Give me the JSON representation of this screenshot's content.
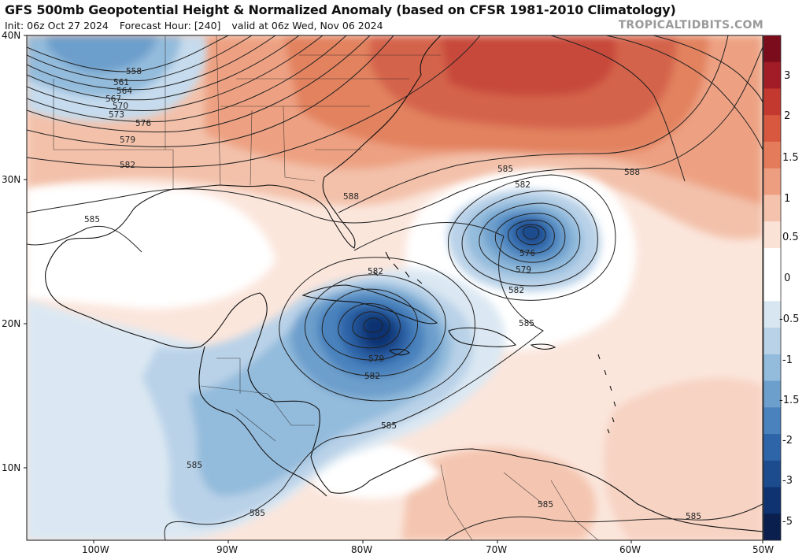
{
  "header": {
    "title": "GFS 500mb Geopotential Height & Normalized Anomaly (based on CFSR 1981-2010 Climatology)",
    "init": "Init: 06z Oct 27 2024",
    "forecast_hour": "Forecast Hour: [240]",
    "valid": "valid at 06z Wed, Nov 06 2024",
    "brand": "TROPICALTIDBITS.COM"
  },
  "axes": {
    "lat_labels": [
      "40N",
      "30N",
      "20N",
      "10N"
    ],
    "lon_labels": [
      "100W",
      "90W",
      "80W",
      "70W",
      "60W",
      "50W"
    ]
  },
  "colorbar": {
    "labels": [
      "3",
      "2",
      "1.5",
      "1",
      "0.5",
      "0",
      "-0.5",
      "-1",
      "-1.5",
      "-2",
      "-3",
      "-5"
    ],
    "colors": [
      "#7a0c1c",
      "#a11c26",
      "#c3392f",
      "#d7583e",
      "#e47b5a",
      "#ee9e80",
      "#f5c3ad",
      "#fae2d6",
      "#ffffff",
      "#ffffff",
      "#d8e6f1",
      "#b9d2e8",
      "#93bbdc",
      "#6d9fcc",
      "#4a82bd",
      "#2e65a8",
      "#1c4c8e",
      "#0f3371",
      "#0a1f4e"
    ]
  },
  "contour_labels": {
    "l558": "558",
    "l561": "561",
    "l564": "564",
    "l567": "567",
    "l570": "570",
    "l573": "573",
    "l576a": "576",
    "l579a": "579",
    "l582a": "582",
    "l585a": "585",
    "l588a": "588",
    "l585b": "585",
    "l588b": "588",
    "l582b": "582",
    "l576b": "576",
    "l579b": "579",
    "l582c": "582",
    "l585c": "585",
    "l582d": "582",
    "l579c": "579",
    "l582e": "582",
    "l585d": "585",
    "l585e": "585",
    "l585f": "585",
    "l585g": "585",
    "l585h": "585"
  }
}
